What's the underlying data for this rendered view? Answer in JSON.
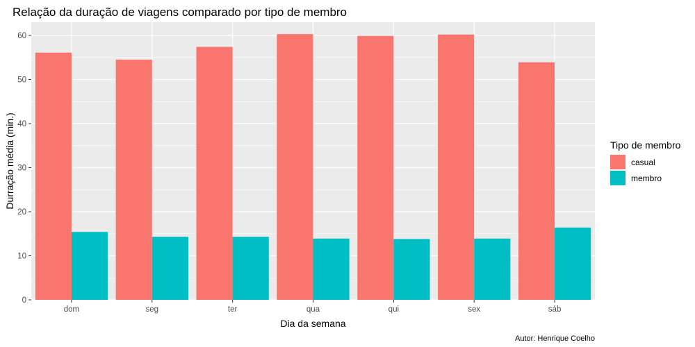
{
  "chart_data": {
    "type": "bar",
    "title": "Relação da duração de viagens comparado por tipo de membro",
    "xlabel": "Dia da semana",
    "ylabel": "Durração média (min.)",
    "caption": "Autor: Henrique Coelho",
    "categories": [
      "dom",
      "seg",
      "ter",
      "qua",
      "qui",
      "sex",
      "sáb"
    ],
    "series": [
      {
        "name": "casual",
        "color": "#F8766D",
        "values": [
          56.1,
          54.5,
          57.4,
          60.3,
          59.9,
          60.2,
          53.9
        ]
      },
      {
        "name": "membro",
        "color": "#00BFC4",
        "values": [
          15.4,
          14.3,
          14.3,
          13.9,
          13.8,
          13.9,
          16.4
        ]
      }
    ],
    "ylim": [
      0,
      63
    ],
    "yticks": [
      0,
      10,
      20,
      30,
      40,
      50,
      60
    ],
    "legend": {
      "title": "Tipo de membro",
      "position": "right"
    },
    "grid": true,
    "panel_background": "#EBEBEB"
  }
}
